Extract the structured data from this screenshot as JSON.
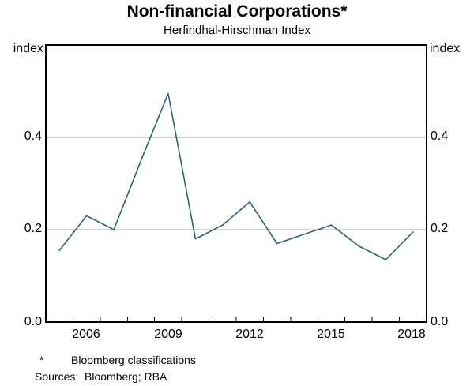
{
  "header": {
    "title": "Non-financial Corporations*",
    "subtitle": "Herfindhal-Hirschman Index"
  },
  "axes": {
    "unit_left": "index",
    "unit_right": "index",
    "ytick_labels": [
      "0.0",
      "0.2",
      "0.4"
    ],
    "xtick_labels": [
      "2006",
      "2009",
      "2012",
      "2015",
      "2018"
    ]
  },
  "footer": {
    "marker": "*",
    "note": "Bloomberg classifications",
    "sources": "Sources:  Bloomberg; RBA"
  },
  "chart_data": {
    "type": "line",
    "title": "Non-financial Corporations*",
    "subtitle": "Herfindhal-Hirschman Index",
    "unit": "index",
    "x": [
      2005,
      2006,
      2007,
      2008,
      2009,
      2010,
      2011,
      2012,
      2013,
      2014,
      2015,
      2016,
      2017,
      2018
    ],
    "values": [
      0.155,
      0.23,
      0.2,
      0.35,
      0.495,
      0.18,
      0.21,
      0.26,
      0.17,
      0.19,
      0.21,
      0.165,
      0.135,
      0.195
    ],
    "x_range": [
      2005,
      2019
    ],
    "ylim": [
      0,
      0.6
    ],
    "yticks_labeled": [
      0.0,
      0.2,
      0.4
    ],
    "gridlines": [
      0.2,
      0.4
    ],
    "xticks_labeled": [
      2006,
      2009,
      2012,
      2015,
      2018
    ],
    "grid_on": true,
    "legend": "none",
    "line_color": "#2a6576",
    "grid_color": "#a9a9a9",
    "axis_color": "#000000"
  }
}
